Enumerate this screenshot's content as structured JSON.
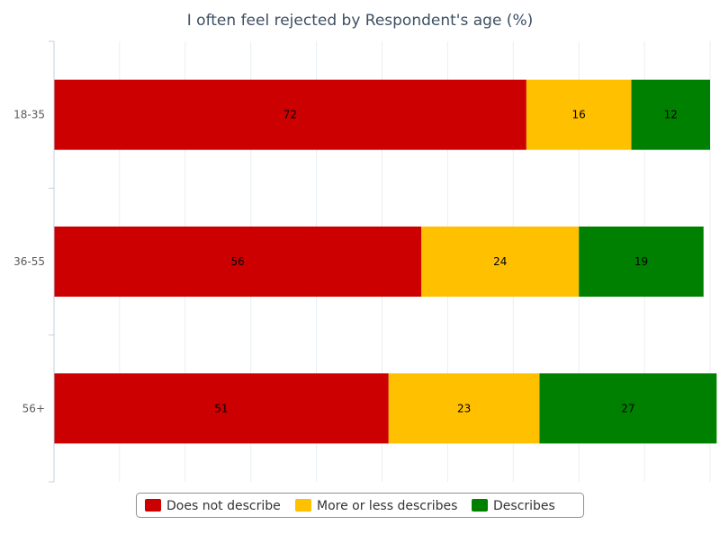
{
  "chart_data": {
    "type": "bar",
    "orientation": "horizontal",
    "stacked": true,
    "title": "I often feel rejected by Respondent's age (%)",
    "categories": [
      "18-35",
      "36-55",
      "56+"
    ],
    "series": [
      {
        "name": "Does not describe",
        "color": "#cc0000",
        "values": [
          72,
          56,
          51
        ]
      },
      {
        "name": "More or less describes",
        "color": "#ffc000",
        "values": [
          16,
          24,
          23
        ]
      },
      {
        "name": "Describes",
        "color": "#008000",
        "values": [
          12,
          19,
          27
        ]
      }
    ],
    "xlim": [
      0,
      100
    ],
    "grid": true,
    "legend_position": "bottom"
  }
}
